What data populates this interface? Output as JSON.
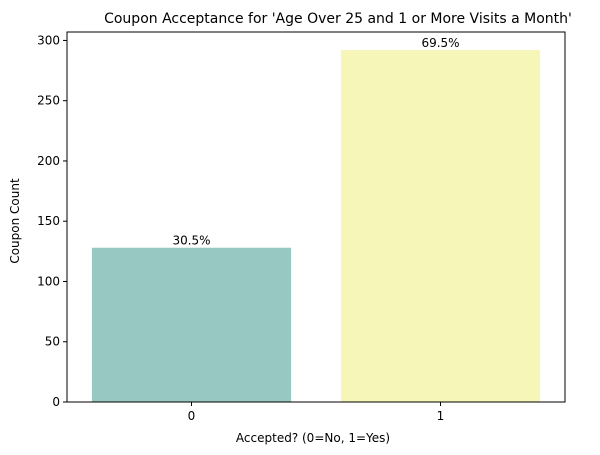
{
  "chart_data": {
    "type": "bar",
    "title": "Coupon Acceptance for 'Age Over 25 and 1 or More Visits a Month'",
    "xlabel": "Accepted? (0=No, 1=Yes)",
    "ylabel": "Coupon Count",
    "categories": [
      "0",
      "1"
    ],
    "values": [
      128,
      292
    ],
    "data_labels": [
      "30.5%",
      "69.5%"
    ],
    "colors": [
      "#97c9c2",
      "#f7f6b9"
    ],
    "ylim": [
      0,
      307
    ],
    "yticks": [
      0,
      50,
      100,
      150,
      200,
      250,
      300
    ],
    "grid": false,
    "legend": "none"
  }
}
